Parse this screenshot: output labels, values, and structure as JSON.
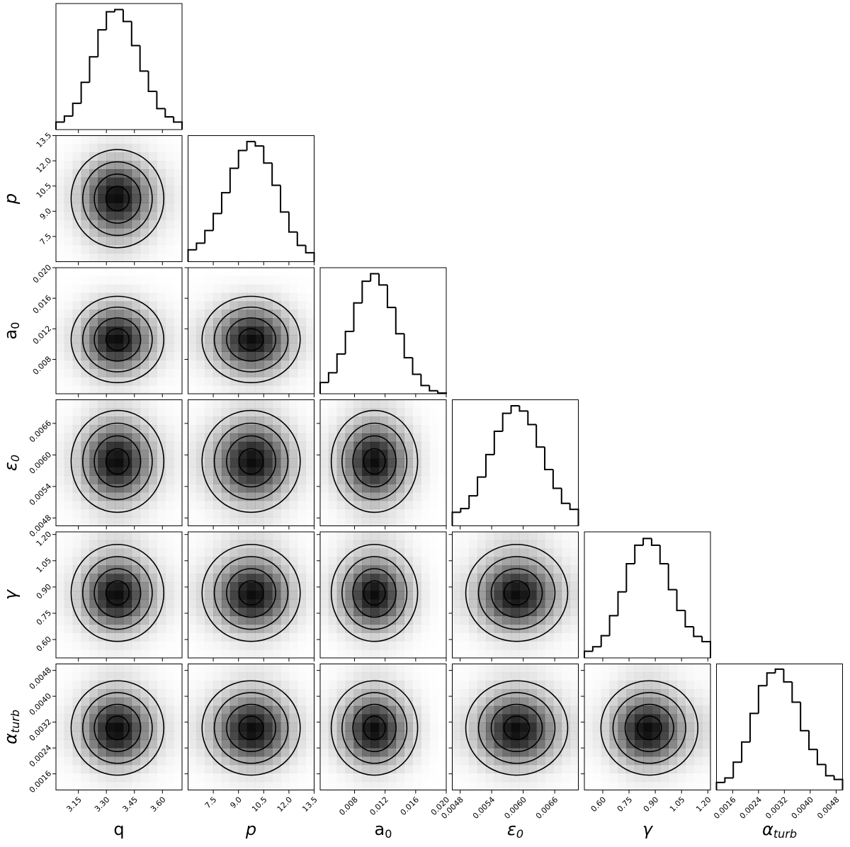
{
  "chart_data": {
    "type": "corner",
    "parameters": [
      {
        "label": "q",
        "italic": false,
        "xlim": [
          3.03,
          3.705
        ],
        "xticks": [
          3.15,
          {
            "value": 3.3,
            "label": "3.30"
          },
          3.45,
          {
            "value": 3.6,
            "label": "3.60"
          }
        ],
        "bins": [
          3.03,
          3.075,
          3.12,
          3.165,
          3.21,
          3.255,
          3.3,
          3.345,
          3.39,
          3.435,
          3.48,
          3.525,
          3.57,
          3.615,
          3.66,
          3.705
        ],
        "counts": [
          10,
          18,
          35,
          63,
          97,
          133,
          157,
          160,
          144,
          112,
          78,
          51,
          28,
          17,
          10
        ],
        "ylim": [
          0,
          168
        ]
      },
      {
        "label": "p",
        "italic": true,
        "xlim": [
          6.0,
          13.5
        ],
        "xticks": [
          7.5,
          {
            "value": 9,
            "label": "9.0"
          },
          10.5,
          {
            "value": 12,
            "label": "12.0"
          },
          13.5
        ],
        "bins": [
          6.0,
          6.5,
          7.0,
          7.5,
          8.0,
          8.5,
          9.0,
          9.5,
          10.0,
          10.5,
          11.0,
          11.5,
          12.0,
          12.5,
          13.0,
          13.5
        ],
        "counts": [
          16,
          25,
          42,
          65,
          93,
          126,
          150,
          162,
          156,
          133,
          103,
          67,
          40,
          22,
          12
        ],
        "ylim": [
          0,
          170
        ]
      },
      {
        "label": "a",
        "subscript": "0",
        "italic": false,
        "xlim": [
          0.0035,
          0.02
        ],
        "xticks": [
          0.008,
          0.012,
          0.016,
          {
            "value": 0.02,
            "label": "0.020"
          }
        ],
        "bins": [
          0.0035,
          0.0046,
          0.0057,
          0.0068,
          0.0079,
          0.009,
          0.0101,
          0.0112,
          0.0123,
          0.0134,
          0.0145,
          0.0156,
          0.0167,
          0.0178,
          0.0189,
          0.02
        ],
        "counts": [
          15,
          28,
          53,
          83,
          121,
          150,
          160,
          145,
          115,
          80,
          48,
          26,
          11,
          4,
          1
        ],
        "ylim": [
          0,
          168
        ]
      },
      {
        "label": "ε",
        "subscript": "0",
        "italic": true,
        "xlim": [
          0.00465,
          0.00705
        ],
        "xticks": [
          0.0048,
          0.0054,
          {
            "value": 0.006,
            "label": "0.0060"
          },
          0.0066
        ],
        "bins": [
          0.00465,
          0.00481,
          0.00497,
          0.00513,
          0.00529,
          0.00545,
          0.00561,
          0.00577,
          0.00593,
          0.00609,
          0.00625,
          0.00641,
          0.00657,
          0.00673,
          0.00689,
          0.00705
        ],
        "counts": [
          18,
          23,
          40,
          65,
          95,
          126,
          150,
          160,
          153,
          135,
          105,
          75,
          50,
          30,
          22
        ],
        "ylim": [
          0,
          168
        ]
      },
      {
        "label": "γ",
        "italic": true,
        "xlim": [
          0.495,
          1.215
        ],
        "xticks": [
          {
            "value": 0.6,
            "label": "0.60"
          },
          0.75,
          {
            "value": 0.9,
            "label": "0.90"
          },
          1.05,
          {
            "value": 1.2,
            "label": "1.20"
          }
        ],
        "bins": [
          0.495,
          0.543,
          0.591,
          0.639,
          0.687,
          0.735,
          0.783,
          0.831,
          0.879,
          0.927,
          0.975,
          1.023,
          1.071,
          1.119,
          1.167,
          1.215
        ],
        "counts": [
          9,
          15,
          30,
          57,
          89,
          127,
          152,
          161,
          152,
          127,
          92,
          64,
          42,
          29,
          22
        ],
        "ylim": [
          0,
          170
        ]
      },
      {
        "label": "α",
        "subscript": "turb",
        "italic": true,
        "xlim": [
          0.0011,
          0.005
        ],
        "xticks": [
          0.0016,
          0.0024,
          0.0032,
          {
            "value": 0.004,
            "label": "0.0040"
          },
          0.0048
        ],
        "bins": [
          0.0011,
          0.00136,
          0.00162,
          0.00188,
          0.00214,
          0.0024,
          0.00266,
          0.00292,
          0.00318,
          0.00344,
          0.0037,
          0.00396,
          0.00422,
          0.00448,
          0.00474,
          0.005
        ],
        "counts": [
          10,
          16,
          37,
          64,
          102,
          139,
          156,
          161,
          144,
          117,
          79,
          54,
          34,
          19,
          14
        ],
        "ylim": [
          0,
          168
        ]
      }
    ]
  }
}
